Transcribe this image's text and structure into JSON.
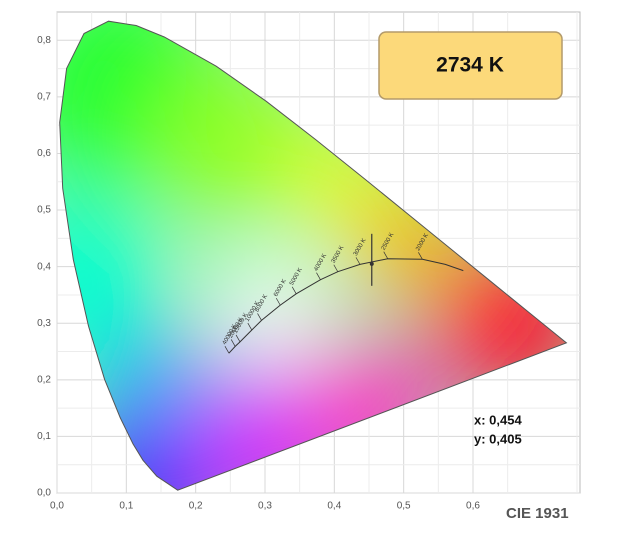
{
  "chart_data": {
    "type": "chromaticity",
    "title": "CIE 1931",
    "cct_label": "2734 K",
    "x_label": "x: 0,454",
    "y_label": "y: 0,405",
    "point": {
      "x": 0.454,
      "y": 0.405
    },
    "point_color": "#333333",
    "cct_ticks": [
      "2000 K",
      "2500 K",
      "3000 K",
      "3500 K",
      "4000 K",
      "5000 K",
      "6000 K",
      "8000 K",
      "10000 K",
      "15000 K",
      "20000 K",
      "40000 K"
    ],
    "xlim": [
      0,
      0.75
    ],
    "ylim": [
      0,
      0.85
    ],
    "xticks": [
      {
        "value": 0,
        "label": "0,0"
      },
      {
        "value": 0.1,
        "label": "0,1"
      },
      {
        "value": 0.2,
        "label": "0,2"
      },
      {
        "value": 0.3,
        "label": "0,3"
      },
      {
        "value": 0.4,
        "label": "0,4"
      },
      {
        "value": 0.5,
        "label": "0,5"
      },
      {
        "value": 0.6,
        "label": "0,6"
      }
    ],
    "yticks": [
      {
        "value": 0,
        "label": "0,0"
      },
      {
        "value": 0.1,
        "label": "0,1"
      },
      {
        "value": 0.2,
        "label": "0,2"
      },
      {
        "value": 0.3,
        "label": "0,3"
      },
      {
        "value": 0.4,
        "label": "0,4"
      },
      {
        "value": 0.5,
        "label": "0,5"
      },
      {
        "value": 0.6,
        "label": "0,6"
      },
      {
        "value": 0.7,
        "label": "0,7"
      },
      {
        "value": 0.8,
        "label": "0,8"
      }
    ],
    "grid": true
  }
}
